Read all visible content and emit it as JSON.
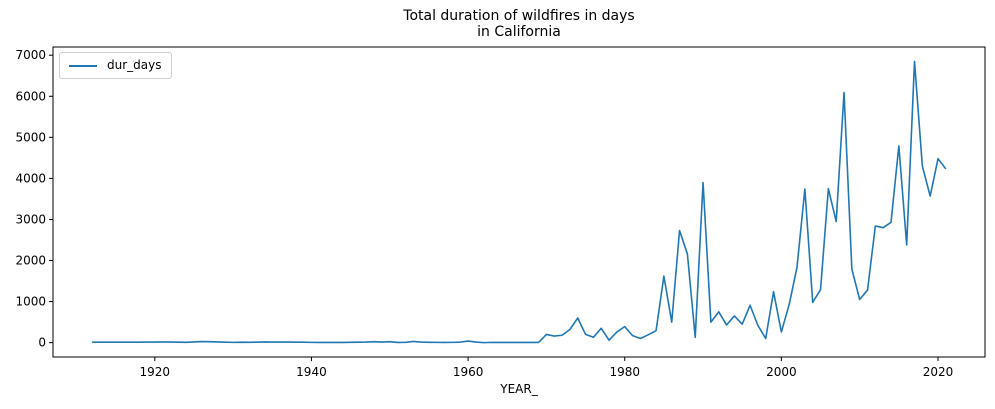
{
  "chart_data": {
    "type": "line",
    "title": "Total duration of wildfires in days\nin California",
    "title_lines": [
      "Total duration of wildfires in days",
      "in California"
    ],
    "xlabel": "YEAR_",
    "ylabel": "",
    "xlim": [
      1907,
      2026
    ],
    "ylim": [
      -350,
      7200
    ],
    "x_ticks": [
      1920,
      1940,
      1960,
      1980,
      2000,
      2020
    ],
    "y_ticks": [
      0,
      1000,
      2000,
      3000,
      4000,
      5000,
      6000,
      7000
    ],
    "grid": false,
    "legend_placement": "upper left",
    "series": [
      {
        "name": "dur_days",
        "color": "#1f77b4",
        "x": [
          1912,
          1913,
          1914,
          1915,
          1916,
          1917,
          1918,
          1919,
          1920,
          1921,
          1922,
          1923,
          1924,
          1925,
          1926,
          1927,
          1928,
          1929,
          1930,
          1931,
          1932,
          1933,
          1934,
          1935,
          1936,
          1937,
          1938,
          1939,
          1940,
          1941,
          1942,
          1943,
          1944,
          1945,
          1946,
          1947,
          1948,
          1949,
          1950,
          1951,
          1952,
          1953,
          1954,
          1955,
          1956,
          1957,
          1958,
          1959,
          1960,
          1961,
          1962,
          1963,
          1964,
          1965,
          1966,
          1967,
          1968,
          1969,
          1970,
          1971,
          1972,
          1973,
          1974,
          1975,
          1976,
          1977,
          1978,
          1979,
          1980,
          1981,
          1982,
          1983,
          1984,
          1985,
          1986,
          1987,
          1988,
          1989,
          1990,
          1991,
          1992,
          1993,
          1994,
          1995,
          1996,
          1997,
          1998,
          1999,
          2000,
          2001,
          2002,
          2003,
          2004,
          2005,
          2006,
          2007,
          2008,
          2009,
          2010,
          2011,
          2012,
          2013,
          2014,
          2015,
          2016,
          2017,
          2018,
          2019,
          2020,
          2021
        ],
        "values": [
          10,
          10,
          10,
          10,
          10,
          12,
          12,
          14,
          14,
          16,
          14,
          10,
          8,
          16,
          26,
          22,
          16,
          10,
          6,
          10,
          8,
          10,
          16,
          14,
          14,
          14,
          12,
          12,
          6,
          4,
          4,
          4,
          4,
          8,
          10,
          14,
          24,
          14,
          22,
          4,
          6,
          28,
          14,
          8,
          6,
          4,
          6,
          12,
          38,
          14,
          0,
          6,
          4,
          4,
          4,
          4,
          4,
          4,
          200,
          160,
          180,
          320,
          600,
          200,
          130,
          350,
          60,
          260,
          390,
          170,
          100,
          190,
          290,
          1620,
          500,
          2730,
          2160,
          130,
          3900,
          500,
          750,
          430,
          650,
          450,
          910,
          420,
          100,
          1240,
          260,
          930,
          1840,
          3740,
          980,
          1290,
          3750,
          2950,
          6090,
          1790,
          1050,
          1280,
          2840,
          2800,
          2930,
          4790,
          2380,
          6850,
          4300,
          3570,
          4480,
          4230
        ]
      }
    ]
  }
}
